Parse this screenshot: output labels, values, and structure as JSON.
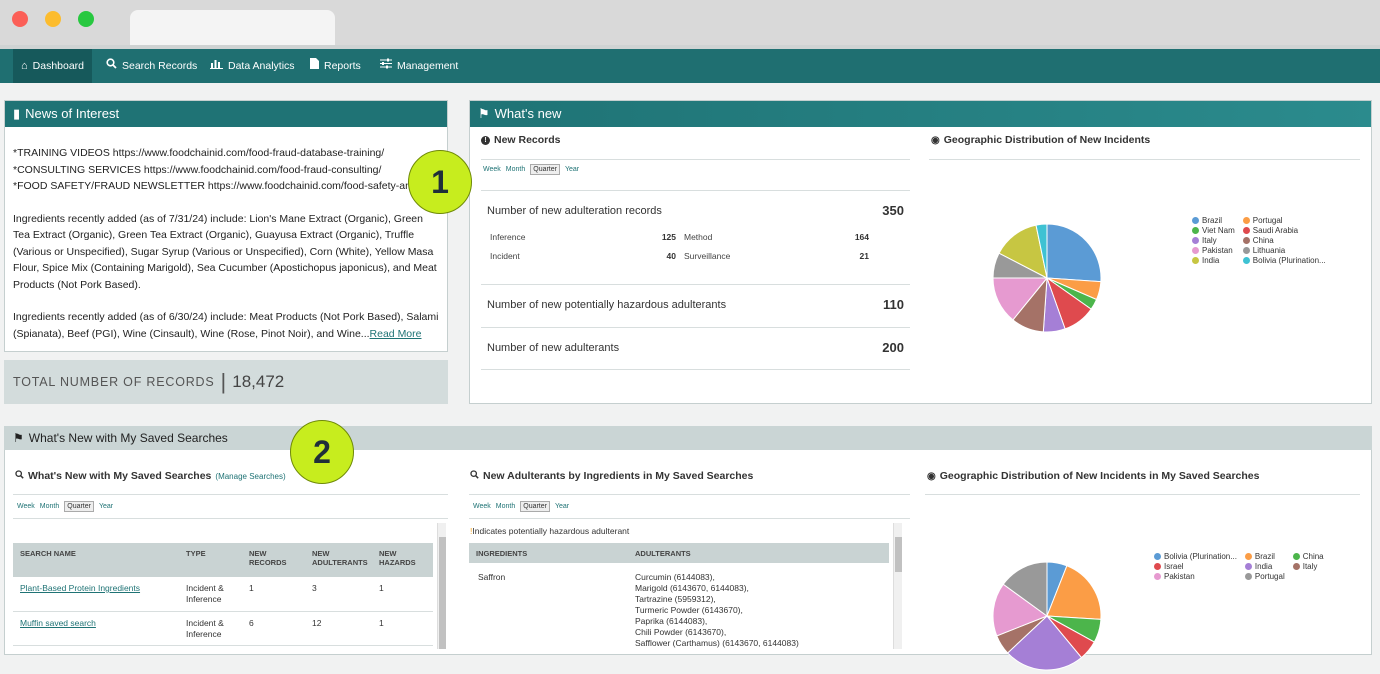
{
  "nav": {
    "items": [
      {
        "label": "Dashboard",
        "icon": "home-icon"
      },
      {
        "label": "Search Records",
        "icon": "search-icon"
      },
      {
        "label": "Data Analytics",
        "icon": "bar-chart-icon"
      },
      {
        "label": "Reports",
        "icon": "document-icon"
      },
      {
        "label": "Management",
        "icon": "sliders-icon"
      }
    ]
  },
  "news": {
    "title": "News of Interest",
    "lines": [
      "*TRAINING VIDEOS https://www.foodchainid.com/food-fraud-database-training/",
      "*CONSULTING SERVICES https://www.foodchainid.com/food-fraud-consulting/",
      "*FOOD SAFETY/FRAUD NEWSLETTER https://www.foodchainid.com/food-safety-and-fraud-"
    ],
    "para1": "Ingredients recently added (as of 7/31/24) include: Lion's Mane Extract (Organic), Green Tea Extract (Organic), Green Tea Extract (Organic), Guayusa Extract (Organic), Truffle (Various or Unspecified), Sugar Syrup (Various or Unspecified), Corn (White), Yellow Masa Flour, Spice Mix (Containing Marigold), Sea Cucumber (Apostichopus japonicus), and Meat Products (Not Pork Based).",
    "para2": "Ingredients recently added (as of 6/30/24) include: Meat Products (Not Pork Based), Salami (Spianata), Beef (PGI), Wine (Cinsault), Wine (Rose, Pinot Noir), and Wine...",
    "read_more": "Read More"
  },
  "total": {
    "label": "TOTAL NUMBER OF RECORDS",
    "value": "18,472"
  },
  "whats_new": {
    "title": "What's new",
    "new_records_title": "New Records",
    "periods": [
      "Week",
      "Month",
      "Quarter",
      "Year"
    ],
    "selected_period": "Quarter",
    "adulteration_label": "Number of new adulteration records",
    "adulteration_value": "350",
    "breakdown": [
      {
        "label": "Inference",
        "value": "125"
      },
      {
        "label": "Method",
        "value": "164"
      },
      {
        "label": "Incident",
        "value": "40"
      },
      {
        "label": "Surveillance",
        "value": "21"
      }
    ],
    "hazardous_label": "Number of new potentially hazardous adulterants",
    "hazardous_value": "110",
    "adulterants_label": "Number of new adulterants",
    "adulterants_value": "200",
    "geo_title": "Geographic Distribution of New Incidents"
  },
  "chart_data": [
    {
      "type": "pie",
      "title": "Geographic Distribution of New Incidents",
      "categories": [
        "Brazil",
        "Portugal",
        "Viet Nam",
        "Saudi Arabia",
        "Italy",
        "China",
        "Pakistan",
        "Lithuania",
        "India",
        "Bolivia (Plurination..."
      ],
      "values": [
        24,
        5,
        3,
        9,
        6,
        9,
        13,
        7,
        13,
        3
      ],
      "colors": [
        "#5b9bd5",
        "#fb9d46",
        "#4cb54b",
        "#df4a4e",
        "#a57fd6",
        "#a57267",
        "#e69ad0",
        "#999999",
        "#c7c642",
        "#3ec2d3"
      ]
    },
    {
      "type": "pie",
      "title": "Geographic Distribution of New Incidents in My Saved Searches",
      "categories": [
        "Bolivia (Plurination...",
        "Brazil",
        "China",
        "Israel",
        "India",
        "Italy",
        "Pakistan",
        "Portugal"
      ],
      "values": [
        6,
        20,
        7,
        6,
        24,
        6,
        16,
        15
      ],
      "colors": [
        "#5b9bd5",
        "#fb9d46",
        "#4cb54b",
        "#df4a4e",
        "#a57fd6",
        "#a57267",
        "#e69ad0",
        "#999999"
      ]
    }
  ],
  "saved": {
    "section_title": "What's New with My Saved Searches",
    "list_title": "What's New with My Saved Searches",
    "manage_link": "(Manage Searches)",
    "columns": [
      "SEARCH NAME",
      "TYPE",
      "NEW RECORDS",
      "NEW ADULTERANTS",
      "NEW HAZARDS"
    ],
    "rows": [
      {
        "name": "Plant-Based Protein Ingredients",
        "type": "Incident & Inference",
        "records": "1",
        "adulterants": "3",
        "hazards": "1"
      },
      {
        "name": "Muffin saved search",
        "type": "Incident & Inference",
        "records": "6",
        "adulterants": "12",
        "hazards": "1"
      }
    ],
    "adulterants_title": "New Adulterants by Ingredients in My Saved Searches",
    "hazard_note": "Indicates potentially hazardous adulterant",
    "adult_columns": [
      "INGREDIENTS",
      "ADULTERANTS"
    ],
    "adult_ingredient": "Saffron",
    "adult_list": [
      "Curcumin (6144083),",
      "Marigold (6143670, 6144083),",
      "Tartrazine (5959312),",
      "Turmeric Powder (6143670),",
      "Paprika (6144083),",
      "Chili Powder (6143670),",
      "Safflower (Carthamus) (6143670, 6144083)"
    ],
    "geo_title": "Geographic Distribution of New Incidents in My Saved Searches"
  },
  "badges": [
    "1",
    "2"
  ]
}
